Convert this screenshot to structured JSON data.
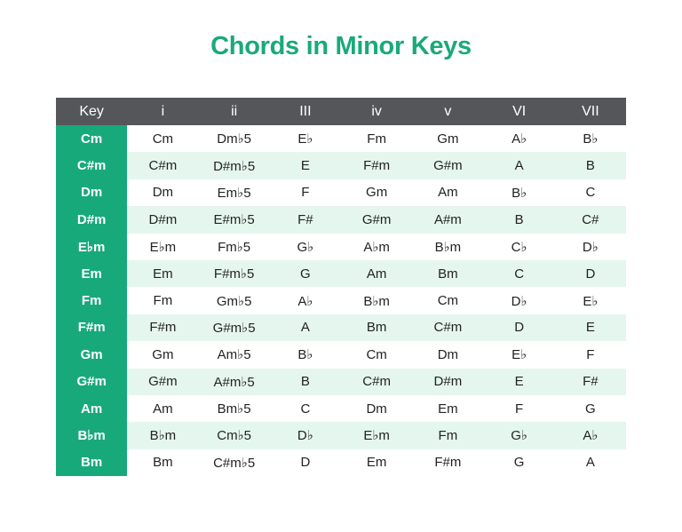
{
  "title": "Chords in Minor Keys",
  "colors": {
    "accent": "#1aa97a",
    "header_bg": "#54565a",
    "key_column": "#18a97b",
    "alt_row": "#e5f6ee"
  },
  "table": {
    "headers": [
      "Key",
      "i",
      "ii",
      "III",
      "iv",
      "v",
      "VI",
      "VII"
    ],
    "rows": [
      [
        "Cm",
        "Cm",
        "Dm♭5",
        "E♭",
        "Fm",
        "Gm",
        "A♭",
        "B♭"
      ],
      [
        "C#m",
        "C#m",
        "D#m♭5",
        "E",
        "F#m",
        "G#m",
        "A",
        "B"
      ],
      [
        "Dm",
        "Dm",
        "Em♭5",
        "F",
        "Gm",
        "Am",
        "B♭",
        "C"
      ],
      [
        "D#m",
        "D#m",
        "E#m♭5",
        "F#",
        "G#m",
        "A#m",
        "B",
        "C#"
      ],
      [
        "E♭m",
        "E♭m",
        "Fm♭5",
        "G♭",
        "A♭m",
        "B♭m",
        "C♭",
        "D♭"
      ],
      [
        "Em",
        "Em",
        "F#m♭5",
        "G",
        "Am",
        "Bm",
        "C",
        "D"
      ],
      [
        "Fm",
        "Fm",
        "Gm♭5",
        "A♭",
        "B♭m",
        "Cm",
        "D♭",
        "E♭"
      ],
      [
        "F#m",
        "F#m",
        "G#m♭5",
        "A",
        "Bm",
        "C#m",
        "D",
        "E"
      ],
      [
        "Gm",
        "Gm",
        "Am♭5",
        "B♭",
        "Cm",
        "Dm",
        "E♭",
        "F"
      ],
      [
        "G#m",
        "G#m",
        "A#m♭5",
        "B",
        "C#m",
        "D#m",
        "E",
        "F#"
      ],
      [
        "Am",
        "Am",
        "Bm♭5",
        "C",
        "Dm",
        "Em",
        "F",
        "G"
      ],
      [
        "B♭m",
        "B♭m",
        "Cm♭5",
        "D♭",
        "E♭m",
        "Fm",
        "G♭",
        "A♭"
      ],
      [
        "Bm",
        "Bm",
        "C#m♭5",
        "D",
        "Em",
        "F#m",
        "G",
        "A"
      ]
    ]
  }
}
